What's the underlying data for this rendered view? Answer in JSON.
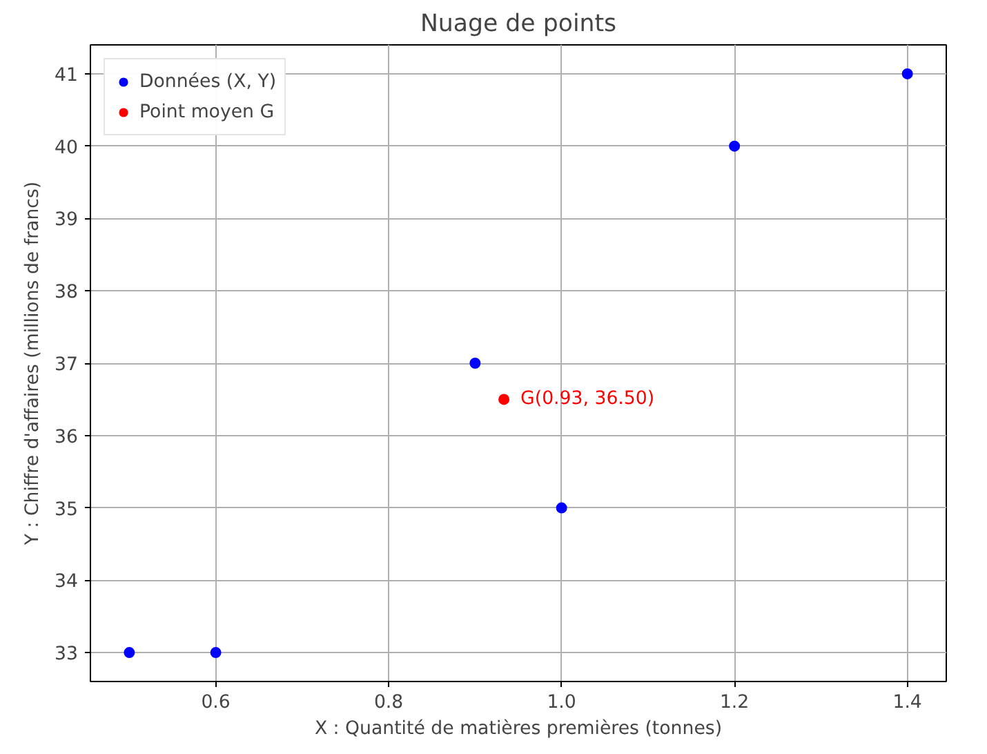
{
  "chart_data": {
    "type": "scatter",
    "title": "Nuage de points",
    "xlabel": "X : Quantité de matières premières (tonnes)",
    "ylabel": "Y : Chiffre d'affaires (millions de francs)",
    "series": [
      {
        "name": "Données (X, Y)",
        "color": "#0000ff",
        "x": [
          0.5,
          0.6,
          0.9,
          1.0,
          1.2,
          1.4
        ],
        "values": [
          33,
          33,
          37,
          35,
          40,
          41
        ]
      },
      {
        "name": "Point moyen G",
        "color": "#ff0000",
        "x": [
          0.9333
        ],
        "values": [
          36.5
        ]
      }
    ],
    "annotations": [
      {
        "text": "G(0.93, 36.50)",
        "x": 0.9333,
        "y": 36.5
      }
    ],
    "xlim": [
      0.455,
      1.445
    ],
    "ylim": [
      32.6,
      41.4
    ],
    "xticks": [
      0.6,
      0.8,
      {
        "value": 1,
        "label": "1.0"
      },
      1.2,
      1.4
    ],
    "yticks": [
      33,
      34,
      35,
      36,
      37,
      38,
      39,
      40,
      41
    ],
    "grid": true,
    "legend": "top left",
    "marker": "circle"
  }
}
